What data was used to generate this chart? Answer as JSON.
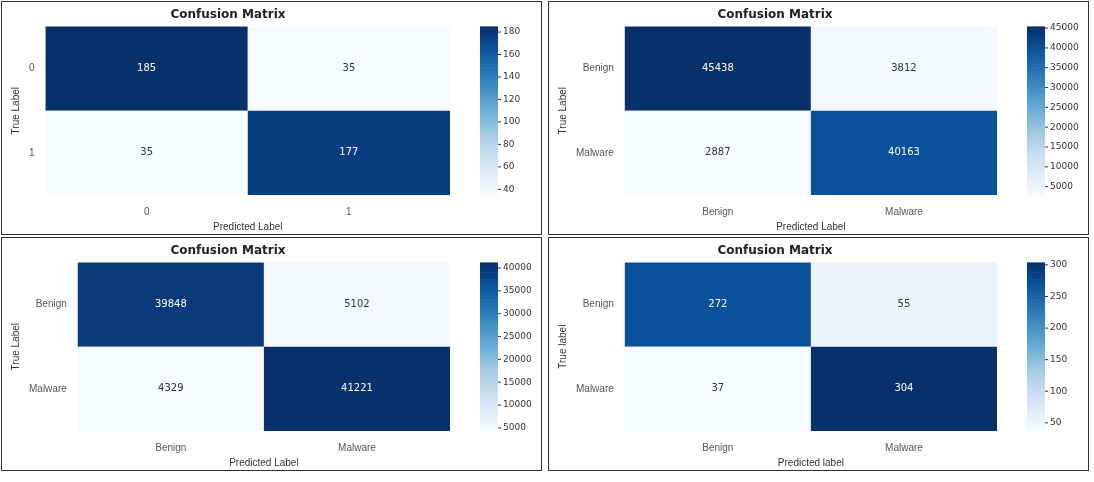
{
  "chart_data": [
    {
      "type": "heatmap",
      "title": "Confusion Matrix",
      "xlabel": "Predicted Label",
      "ylabel": "True Label",
      "categories": [
        "0",
        "1"
      ],
      "y_categories": [
        "0",
        "1"
      ],
      "cells": [
        [
          185,
          35
        ],
        [
          35,
          177
        ]
      ],
      "clim": [
        35,
        185
      ],
      "cticks": [
        40,
        60,
        80,
        100,
        120,
        140,
        160,
        180
      ],
      "data_labels": true
    },
    {
      "type": "heatmap",
      "title": "Confusion Matrix",
      "xlabel": "Predicted Label",
      "ylabel": "True Label",
      "categories": [
        "Benign",
        "Malware"
      ],
      "y_categories": [
        "Benign",
        "Malware"
      ],
      "cells": [
        [
          45438,
          3812
        ],
        [
          2887,
          40163
        ]
      ],
      "clim": [
        2887,
        45438
      ],
      "cticks": [
        5000,
        10000,
        15000,
        20000,
        25000,
        30000,
        35000,
        40000,
        45000
      ],
      "data_labels": true
    },
    {
      "type": "heatmap",
      "title": "Confusion Matrix",
      "xlabel": "Predicted Label",
      "ylabel": "True Label",
      "categories": [
        "Benign",
        "Malware"
      ],
      "y_categories": [
        "Benign",
        "Malware"
      ],
      "cells": [
        [
          39848,
          5102
        ],
        [
          4329,
          41221
        ]
      ],
      "clim": [
        4329,
        41221
      ],
      "cticks": [
        5000,
        10000,
        15000,
        20000,
        25000,
        30000,
        35000,
        40000
      ],
      "data_labels": true
    },
    {
      "type": "heatmap",
      "title": "Confusion Matrix",
      "xlabel": "Predicted label",
      "ylabel": "True label",
      "categories": [
        "Benign",
        "Malware"
      ],
      "y_categories": [
        "Benign",
        "Malware"
      ],
      "cells": [
        [
          272,
          55
        ],
        [
          37,
          304
        ]
      ],
      "clim": [
        37,
        304
      ],
      "cticks": [
        50,
        100,
        150,
        200,
        250,
        300
      ],
      "data_labels": true
    }
  ]
}
